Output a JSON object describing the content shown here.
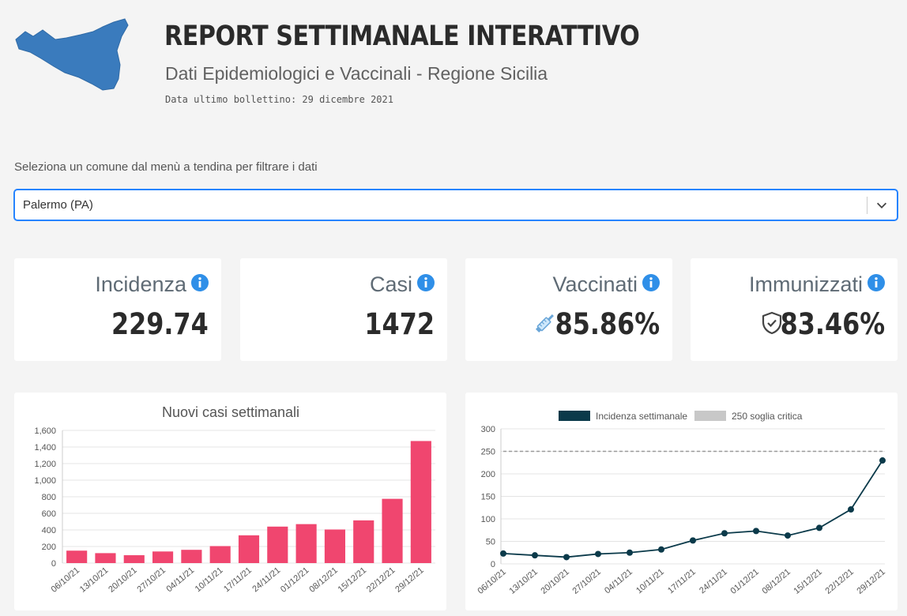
{
  "header": {
    "title": "REPORT SETTIMANALE INTERATTIVO",
    "subtitle": "Dati Epidemiologici e Vaccinali - Regione Sicilia",
    "updated": "Data ultimo bollettino: 29 dicembre 2021",
    "logo_icon": "sicily-map-icon"
  },
  "filter": {
    "label": "Seleziona un comune dal menù a tendina per filtrare i dati",
    "selected": "Palermo (PA)"
  },
  "cards": [
    {
      "label": "Incidenza",
      "value": "229.74"
    },
    {
      "label": "Casi",
      "value": "1472"
    },
    {
      "label": "Vaccinati",
      "value": "85.86%",
      "icon": "syringe-icon"
    },
    {
      "label": "Immunizzati",
      "value": "83.46%",
      "icon": "shield-check-icon"
    }
  ],
  "colors": {
    "bar": "#f0466f",
    "line": "#0b3a4a",
    "info": "#2f8fe8",
    "accent": "#2684ff"
  },
  "chart_data": [
    {
      "type": "bar",
      "title": "Nuovi casi settimanali",
      "categories": [
        "06/10/21",
        "13/10/21",
        "20/10/21",
        "27/10/21",
        "04/11/21",
        "10/11/21",
        "17/11/21",
        "24/11/21",
        "01/12/21",
        "08/12/21",
        "15/12/21",
        "22/12/21",
        "29/12/21"
      ],
      "values": [
        150,
        120,
        95,
        140,
        160,
        205,
        335,
        440,
        470,
        405,
        515,
        775,
        1472
      ],
      "ylim": [
        0,
        1600
      ],
      "yticks": [
        "0",
        "200",
        "400",
        "600",
        "800",
        "1,000",
        "1,200",
        "1,400",
        "1,600"
      ],
      "grid": true
    },
    {
      "type": "line",
      "categories": [
        "06/10/21",
        "13/10/21",
        "20/10/21",
        "27/10/21",
        "04/11/21",
        "10/11/21",
        "17/11/21",
        "24/11/21",
        "01/12/21",
        "08/12/21",
        "15/12/21",
        "22/12/21",
        "29/12/21"
      ],
      "series": [
        {
          "name": "Incidenza settimanale",
          "values": [
            23,
            19,
            15,
            22,
            25,
            32,
            52,
            68,
            73,
            63,
            80,
            121,
            229.74
          ]
        },
        {
          "name": "250 soglia critica",
          "values": [
            250,
            250,
            250,
            250,
            250,
            250,
            250,
            250,
            250,
            250,
            250,
            250,
            250
          ]
        }
      ],
      "ylim": [
        0,
        300
      ],
      "yticks": [
        "0",
        "50",
        "100",
        "150",
        "200",
        "250",
        "300"
      ],
      "legend": "top-center",
      "grid": true
    }
  ]
}
